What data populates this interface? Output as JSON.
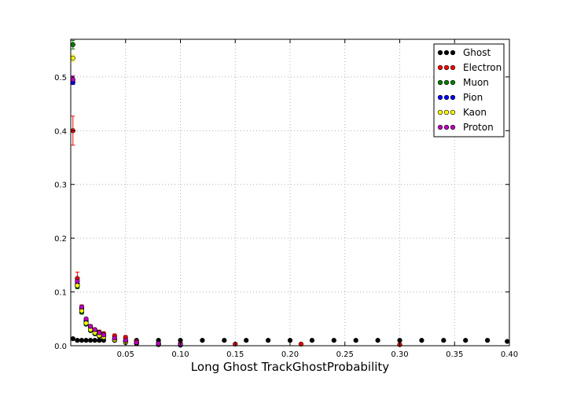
{
  "chart_data": {
    "type": "scatter",
    "title": "",
    "xlabel": "Long Ghost TrackGhostProbability",
    "ylabel": "",
    "xlim": [
      0.0,
      0.4
    ],
    "ylim": [
      0.0,
      0.57
    ],
    "xticks": [
      0.05,
      0.1,
      0.15,
      0.2,
      0.25,
      0.3,
      0.35,
      0.4
    ],
    "xtick_labels": [
      "0.05",
      "0.10",
      "0.15",
      "0.20",
      "0.25",
      "0.30",
      "0.35",
      "0.40"
    ],
    "yticks": [
      0.0,
      0.1,
      0.2,
      0.3,
      0.4,
      0.5
    ],
    "ytick_labels": [
      "0.0",
      "0.1",
      "0.2",
      "0.3",
      "0.4",
      "0.5"
    ],
    "grid": true,
    "legend_position": "top-right",
    "series": [
      {
        "name": "Ghost",
        "color": "#000000",
        "x": [
          0.002,
          0.006,
          0.01,
          0.014,
          0.018,
          0.022,
          0.026,
          0.03,
          0.04,
          0.05,
          0.06,
          0.08,
          0.1,
          0.12,
          0.14,
          0.16,
          0.18,
          0.2,
          0.22,
          0.24,
          0.26,
          0.28,
          0.3,
          0.32,
          0.34,
          0.36,
          0.38,
          0.398
        ],
        "y": [
          0.013,
          0.01,
          0.01,
          0.01,
          0.01,
          0.01,
          0.01,
          0.01,
          0.01,
          0.01,
          0.01,
          0.01,
          0.01,
          0.01,
          0.01,
          0.01,
          0.01,
          0.01,
          0.01,
          0.01,
          0.01,
          0.01,
          0.01,
          0.01,
          0.01,
          0.01,
          0.01,
          0.008
        ],
        "err": [
          0.001,
          0.001,
          0.001,
          0.001,
          0.001,
          0.001,
          0.001,
          0.001,
          0.001,
          0.001,
          0.001,
          0.001,
          0.001,
          0.001,
          0.001,
          0.001,
          0.001,
          0.001,
          0.001,
          0.001,
          0.001,
          0.001,
          0.001,
          0.001,
          0.001,
          0.001,
          0.001,
          0.001
        ]
      },
      {
        "name": "Electron",
        "color": "#ff0000",
        "x": [
          0.002,
          0.006,
          0.01,
          0.014,
          0.018,
          0.022,
          0.026,
          0.03,
          0.04,
          0.05,
          0.06,
          0.08,
          0.1,
          0.15,
          0.21,
          0.3
        ],
        "y": [
          0.4,
          0.125,
          0.07,
          0.045,
          0.035,
          0.028,
          0.025,
          0.022,
          0.018,
          0.015,
          0.008,
          0.005,
          0.004,
          0.003,
          0.003,
          0.002
        ],
        "err": [
          0.027,
          0.012,
          0.006,
          0.005,
          0.004,
          0.004,
          0.004,
          0.004,
          0.004,
          0.004,
          0.003,
          0.002,
          0.002,
          0.002,
          0.002,
          0.002
        ]
      },
      {
        "name": "Muon",
        "color": "#007f00",
        "x": [
          0.002,
          0.006,
          0.01,
          0.014,
          0.018,
          0.022,
          0.026,
          0.03,
          0.04,
          0.05,
          0.06,
          0.08,
          0.1
        ],
        "y": [
          0.56,
          0.11,
          0.062,
          0.04,
          0.028,
          0.022,
          0.018,
          0.015,
          0.01,
          0.006,
          0.004,
          0.002,
          0.001
        ],
        "err": [
          0.008,
          0.004,
          0.003,
          0.002,
          0.002,
          0.002,
          0.002,
          0.002,
          0.001,
          0.001,
          0.001,
          0.001,
          0.001
        ]
      },
      {
        "name": "Pion",
        "color": "#0000ff",
        "x": [
          0.002,
          0.006,
          0.01,
          0.014,
          0.018,
          0.022,
          0.026,
          0.03,
          0.04,
          0.05,
          0.06,
          0.08,
          0.1
        ],
        "y": [
          0.49,
          0.115,
          0.068,
          0.046,
          0.034,
          0.028,
          0.022,
          0.018,
          0.012,
          0.008,
          0.005,
          0.003,
          0.002
        ],
        "err": [
          0.004,
          0.002,
          0.002,
          0.001,
          0.001,
          0.001,
          0.001,
          0.001,
          0.001,
          0.001,
          0.001,
          0.001,
          0.001
        ]
      },
      {
        "name": "Kaon",
        "color": "#ffff00",
        "x": [
          0.002,
          0.006,
          0.01,
          0.014,
          0.018,
          0.022,
          0.026,
          0.03,
          0.04,
          0.05,
          0.06,
          0.08,
          0.1
        ],
        "y": [
          0.535,
          0.112,
          0.065,
          0.042,
          0.03,
          0.024,
          0.019,
          0.016,
          0.011,
          0.007,
          0.005,
          0.003,
          0.002
        ],
        "err": [
          0.006,
          0.003,
          0.002,
          0.002,
          0.002,
          0.002,
          0.001,
          0.001,
          0.001,
          0.001,
          0.001,
          0.001,
          0.001
        ]
      },
      {
        "name": "Proton",
        "color": "#bf00bf",
        "x": [
          0.002,
          0.006,
          0.01,
          0.014,
          0.018,
          0.022,
          0.026,
          0.03,
          0.04,
          0.05,
          0.06,
          0.08,
          0.1
        ],
        "y": [
          0.495,
          0.12,
          0.072,
          0.05,
          0.036,
          0.03,
          0.024,
          0.02,
          0.014,
          0.01,
          0.006,
          0.004,
          0.002
        ],
        "err": [
          0.007,
          0.004,
          0.003,
          0.002,
          0.002,
          0.002,
          0.002,
          0.002,
          0.002,
          0.002,
          0.001,
          0.001,
          0.001
        ]
      }
    ]
  }
}
